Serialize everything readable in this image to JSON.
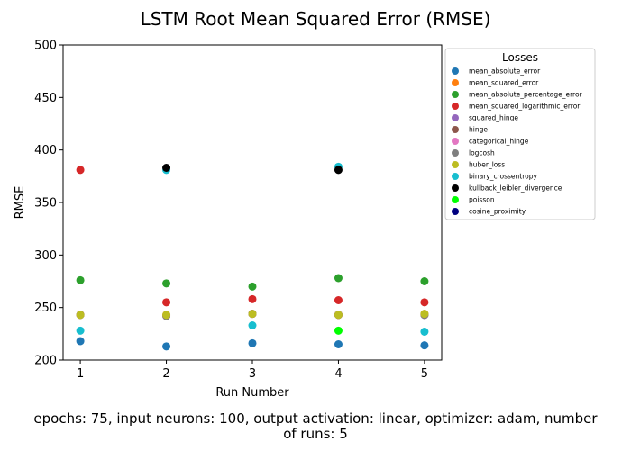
{
  "chart_data": {
    "type": "scatter",
    "title": "LSTM Root Mean Squared Error (RMSE)",
    "xlabel": "Run Number",
    "ylabel": "RMSE",
    "x": [
      1,
      2,
      3,
      4,
      5
    ],
    "xticks": [
      "1",
      "2",
      "3",
      "4",
      "5"
    ],
    "yticks": [
      "200",
      "250",
      "300",
      "350",
      "400",
      "450",
      "500"
    ],
    "xlim": [
      0.8,
      5.2
    ],
    "ylim": [
      200,
      500
    ],
    "grid": false,
    "legend_title": "Losses",
    "legend_position": "outside-right",
    "caption_lines": [
      "epochs: 75, input neurons: 100, output activation: linear, optimizer: adam, number",
      "of runs: 5"
    ],
    "series": [
      {
        "name": "mean_absolute_error",
        "color": "#1f77b4",
        "values": [
          218,
          213,
          216,
          215,
          214
        ]
      },
      {
        "name": "mean_squared_error",
        "color": "#ff7f0e",
        "values": [
          243,
          243,
          244,
          243,
          244
        ]
      },
      {
        "name": "mean_absolute_percentage_error",
        "color": "#2ca02c",
        "values": [
          276,
          273,
          270,
          278,
          275
        ]
      },
      {
        "name": "mean_squared_logarithmic_error",
        "color": "#d62728",
        "values": [
          381,
          255,
          258,
          257,
          255
        ]
      },
      {
        "name": "squared_hinge",
        "color": "#9467bd",
        "values": [
          243,
          242,
          244,
          243,
          243
        ]
      },
      {
        "name": "hinge",
        "color": "#8c564b",
        "values": [
          243,
          242,
          244,
          243,
          243
        ]
      },
      {
        "name": "categorical_hinge",
        "color": "#e377c2",
        "values": [
          243,
          242,
          244,
          243,
          243
        ]
      },
      {
        "name": "logcosh",
        "color": "#7f7f7f",
        "values": [
          243,
          242,
          244,
          243,
          243
        ]
      },
      {
        "name": "huber_loss",
        "color": "#bcbd22",
        "values": [
          243,
          243,
          244,
          243,
          244
        ]
      },
      {
        "name": "binary_crossentropy",
        "color": "#17becf",
        "values": [
          228,
          381,
          233,
          384,
          227
        ]
      },
      {
        "name": "kullback_leibler_divergence",
        "color": "#000000",
        "values": [
          null,
          383,
          null,
          381,
          null
        ]
      },
      {
        "name": "poisson",
        "color": "#00ff00",
        "values": [
          null,
          null,
          null,
          228,
          null
        ]
      },
      {
        "name": "cosine_proximity",
        "color": "#000080",
        "values": [
          null,
          null,
          null,
          null,
          null
        ]
      }
    ]
  }
}
